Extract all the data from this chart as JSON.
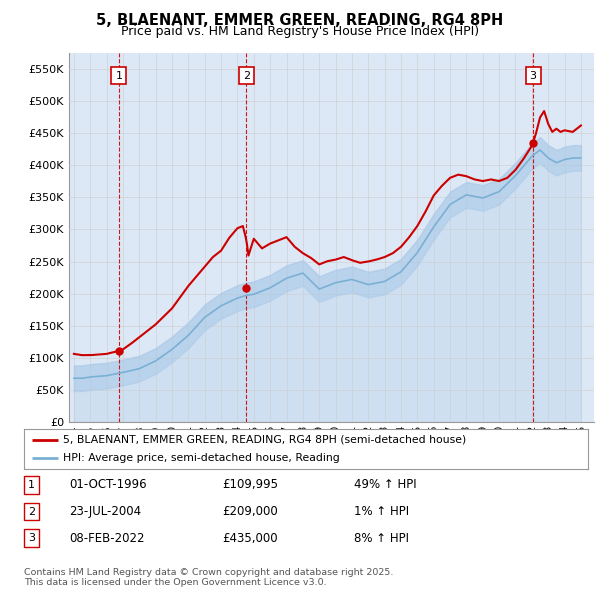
{
  "title": "5, BLAENANT, EMMER GREEN, READING, RG4 8PH",
  "subtitle": "Price paid vs. HM Land Registry's House Price Index (HPI)",
  "ylim": [
    0,
    575000
  ],
  "yticks": [
    0,
    50000,
    100000,
    150000,
    200000,
    250000,
    300000,
    350000,
    400000,
    450000,
    500000,
    550000
  ],
  "ytick_labels": [
    "£0",
    "£50K",
    "£100K",
    "£150K",
    "£200K",
    "£250K",
    "£300K",
    "£350K",
    "£400K",
    "£450K",
    "£500K",
    "£550K"
  ],
  "xlim_start": 1993.7,
  "xlim_end": 2025.8,
  "xticks": [
    1994,
    1995,
    1996,
    1997,
    1998,
    1999,
    2000,
    2001,
    2002,
    2003,
    2004,
    2005,
    2006,
    2007,
    2008,
    2009,
    2010,
    2011,
    2012,
    2013,
    2014,
    2015,
    2016,
    2017,
    2018,
    2019,
    2020,
    2021,
    2022,
    2023,
    2024,
    2025
  ],
  "hpi_color": "#a8c8e8",
  "hpi_line_color": "#7ab0d4",
  "price_color": "#cc0000",
  "grid_color": "#cccccc",
  "bg_color": "#dce8f5",
  "sale_points": [
    {
      "year": 1996.75,
      "price": 109995,
      "label": "1"
    },
    {
      "year": 2004.55,
      "price": 209000,
      "label": "2"
    },
    {
      "year": 2022.08,
      "price": 435000,
      "label": "3"
    }
  ],
  "legend_entries": [
    "5, BLAENANT, EMMER GREEN, READING, RG4 8PH (semi-detached house)",
    "HPI: Average price, semi-detached house, Reading"
  ],
  "table_rows": [
    {
      "num": "1",
      "date": "01-OCT-1996",
      "price": "£109,995",
      "hpi": "49% ↑ HPI"
    },
    {
      "num": "2",
      "date": "23-JUL-2004",
      "price": "£209,000",
      "hpi": "1% ↑ HPI"
    },
    {
      "num": "3",
      "date": "08-FEB-2022",
      "price": "£435,000",
      "hpi": "8% ↑ HPI"
    }
  ],
  "footer": "Contains HM Land Registry data © Crown copyright and database right 2025.\nThis data is licensed under the Open Government Licence v3.0.",
  "vline_color": "#cc0000",
  "hpi_data_years": [
    1994.0,
    1994.08,
    1994.17,
    1994.25,
    1994.33,
    1994.42,
    1994.5,
    1994.58,
    1994.67,
    1994.75,
    1994.83,
    1994.92,
    1995.0,
    1995.08,
    1995.17,
    1995.25,
    1995.33,
    1995.42,
    1995.5,
    1995.58,
    1995.67,
    1995.75,
    1995.83,
    1995.92,
    1996.0,
    1996.08,
    1996.17,
    1996.25,
    1996.33,
    1996.42,
    1996.5,
    1996.58,
    1996.67,
    1996.75,
    1996.83,
    1996.92,
    1997.0,
    1997.08,
    1997.17,
    1997.25,
    1997.33,
    1997.42,
    1997.5,
    1997.58,
    1997.67,
    1997.75,
    1997.83,
    1997.92,
    1998.0,
    1998.08,
    1998.17,
    1998.25,
    1998.33,
    1998.42,
    1998.5,
    1998.58,
    1998.67,
    1998.75,
    1998.83,
    1998.92,
    1999.0,
    1999.08,
    1999.17,
    1999.25,
    1999.33,
    1999.42,
    1999.5,
    1999.58,
    1999.67,
    1999.75,
    1999.83,
    1999.92,
    2000.0,
    2000.08,
    2000.17,
    2000.25,
    2000.33,
    2000.42,
    2000.5,
    2000.58,
    2000.67,
    2000.75,
    2000.83,
    2000.92,
    2001.0,
    2001.08,
    2001.17,
    2001.25,
    2001.33,
    2001.42,
    2001.5,
    2001.58,
    2001.67,
    2001.75,
    2001.83,
    2001.92,
    2002.0,
    2002.08,
    2002.17,
    2002.25,
    2002.33,
    2002.42,
    2002.5,
    2002.58,
    2002.67,
    2002.75,
    2002.83,
    2002.92,
    2003.0,
    2003.08,
    2003.17,
    2003.25,
    2003.33,
    2003.42,
    2003.5,
    2003.58,
    2003.67,
    2003.75,
    2003.83,
    2003.92,
    2004.0,
    2004.08,
    2004.17,
    2004.25,
    2004.33,
    2004.42,
    2004.5,
    2004.58,
    2004.67,
    2004.75,
    2004.83,
    2004.92,
    2005.0,
    2005.08,
    2005.17,
    2005.25,
    2005.33,
    2005.42,
    2005.5,
    2005.58,
    2005.67,
    2005.75,
    2005.83,
    2005.92,
    2006.0,
    2006.08,
    2006.17,
    2006.25,
    2006.33,
    2006.42,
    2006.5,
    2006.58,
    2006.67,
    2006.75,
    2006.83,
    2006.92,
    2007.0,
    2007.08,
    2007.17,
    2007.25,
    2007.33,
    2007.42,
    2007.5,
    2007.58,
    2007.67,
    2007.75,
    2007.83,
    2007.92,
    2008.0,
    2008.08,
    2008.17,
    2008.25,
    2008.33,
    2008.42,
    2008.5,
    2008.58,
    2008.67,
    2008.75,
    2008.83,
    2008.92,
    2009.0,
    2009.08,
    2009.17,
    2009.25,
    2009.33,
    2009.42,
    2009.5,
    2009.58,
    2009.67,
    2009.75,
    2009.83,
    2009.92,
    2010.0,
    2010.08,
    2010.17,
    2010.25,
    2010.33,
    2010.42,
    2010.5,
    2010.58,
    2010.67,
    2010.75,
    2010.83,
    2010.92,
    2011.0,
    2011.08,
    2011.17,
    2011.25,
    2011.33,
    2011.42,
    2011.5,
    2011.58,
    2011.67,
    2011.75,
    2011.83,
    2011.92,
    2012.0,
    2012.08,
    2012.17,
    2012.25,
    2012.33,
    2012.42,
    2012.5,
    2012.58,
    2012.67,
    2012.75,
    2012.83,
    2012.92,
    2013.0,
    2013.08,
    2013.17,
    2013.25,
    2013.33,
    2013.42,
    2013.5,
    2013.58,
    2013.67,
    2013.75,
    2013.83,
    2013.92,
    2014.0,
    2014.08,
    2014.17,
    2014.25,
    2014.33,
    2014.42,
    2014.5,
    2014.58,
    2014.67,
    2014.75,
    2014.83,
    2014.92,
    2015.0,
    2015.08,
    2015.17,
    2015.25,
    2015.33,
    2015.42,
    2015.5,
    2015.58,
    2015.67,
    2015.75,
    2015.83,
    2015.92,
    2016.0,
    2016.08,
    2016.17,
    2016.25,
    2016.33,
    2016.42,
    2016.5,
    2016.58,
    2016.67,
    2016.75,
    2016.83,
    2016.92,
    2017.0,
    2017.08,
    2017.17,
    2017.25,
    2017.33,
    2017.42,
    2017.5,
    2017.58,
    2017.67,
    2017.75,
    2017.83,
    2017.92,
    2018.0,
    2018.08,
    2018.17,
    2018.25,
    2018.33,
    2018.42,
    2018.5,
    2018.58,
    2018.67,
    2018.75,
    2018.83,
    2018.92,
    2019.0,
    2019.08,
    2019.17,
    2019.25,
    2019.33,
    2019.42,
    2019.5,
    2019.58,
    2019.67,
    2019.75,
    2019.83,
    2019.92,
    2020.0,
    2020.08,
    2020.17,
    2020.25,
    2020.33,
    2020.42,
    2020.5,
    2020.58,
    2020.67,
    2020.75,
    2020.83,
    2020.92,
    2021.0,
    2021.08,
    2021.17,
    2021.25,
    2021.33,
    2021.42,
    2021.5,
    2021.58,
    2021.67,
    2021.75,
    2021.83,
    2021.92,
    2022.0,
    2022.08,
    2022.17,
    2022.25,
    2022.33,
    2022.42,
    2022.5,
    2022.58,
    2022.67,
    2022.75,
    2022.83,
    2022.92,
    2023.0,
    2023.08,
    2023.17,
    2023.25,
    2023.33,
    2023.42,
    2023.5,
    2023.58,
    2023.67,
    2023.75,
    2023.83,
    2023.92,
    2024.0,
    2024.08,
    2024.17,
    2024.25,
    2024.33,
    2024.42,
    2024.5,
    2024.58,
    2024.67,
    2024.75,
    2024.83,
    2024.92,
    2025.0
  ]
}
